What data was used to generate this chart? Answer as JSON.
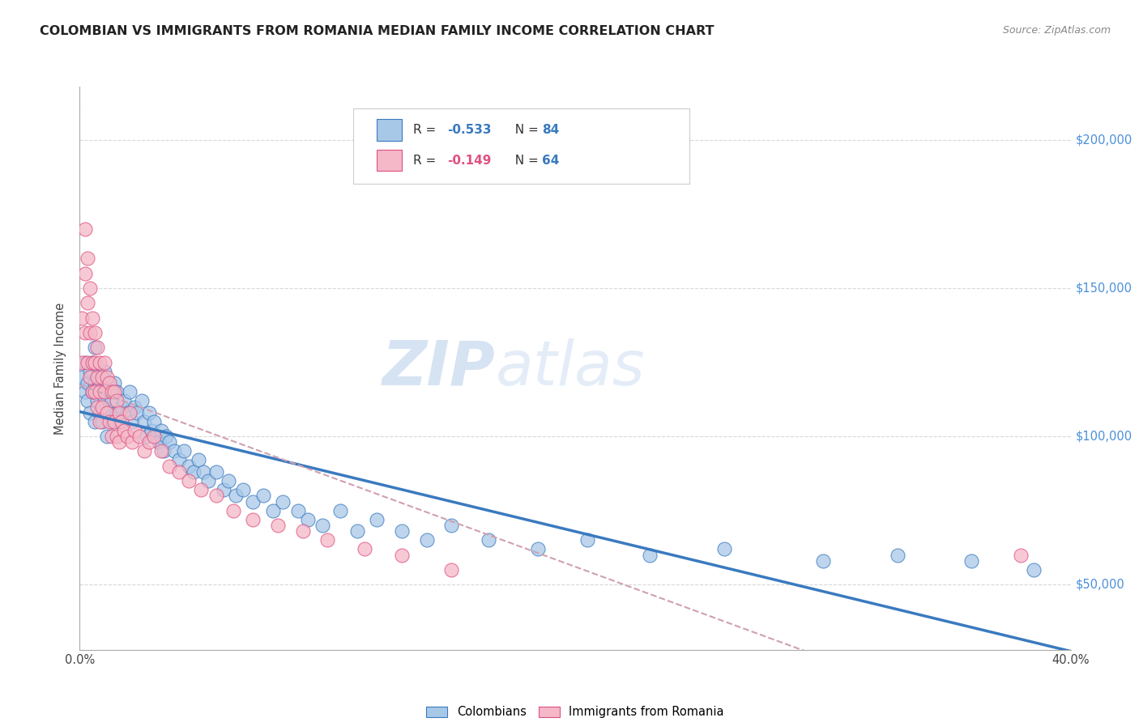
{
  "title": "COLOMBIAN VS IMMIGRANTS FROM ROMANIA MEDIAN FAMILY INCOME CORRELATION CHART",
  "source": "Source: ZipAtlas.com",
  "ylabel": "Median Family Income",
  "y_ticks": [
    50000,
    100000,
    150000,
    200000
  ],
  "y_tick_labels": [
    "$50,000",
    "$100,000",
    "$150,000",
    "$200,000"
  ],
  "xlim": [
    0.0,
    0.4
  ],
  "ylim": [
    28000,
    218000
  ],
  "color_blue": "#a8c8e8",
  "color_pink": "#f4b8c8",
  "line_blue": "#3a7abf",
  "line_pink": "#e05080",
  "line_dashed_color": "#d0a0b0",
  "watermark_zip": "ZIP",
  "watermark_atlas": "atlas",
  "colombians_x": [
    0.001,
    0.002,
    0.002,
    0.003,
    0.003,
    0.004,
    0.004,
    0.005,
    0.005,
    0.006,
    0.006,
    0.006,
    0.007,
    0.007,
    0.008,
    0.008,
    0.009,
    0.009,
    0.01,
    0.01,
    0.011,
    0.011,
    0.012,
    0.012,
    0.013,
    0.013,
    0.014,
    0.015,
    0.015,
    0.016,
    0.017,
    0.018,
    0.019,
    0.02,
    0.021,
    0.022,
    0.023,
    0.025,
    0.026,
    0.027,
    0.028,
    0.029,
    0.03,
    0.031,
    0.032,
    0.033,
    0.034,
    0.035,
    0.036,
    0.038,
    0.04,
    0.042,
    0.044,
    0.046,
    0.048,
    0.05,
    0.052,
    0.055,
    0.058,
    0.06,
    0.063,
    0.066,
    0.07,
    0.074,
    0.078,
    0.082,
    0.088,
    0.092,
    0.098,
    0.105,
    0.112,
    0.12,
    0.13,
    0.14,
    0.15,
    0.165,
    0.185,
    0.205,
    0.23,
    0.26,
    0.3,
    0.33,
    0.36,
    0.385
  ],
  "colombians_y": [
    120000,
    115000,
    125000,
    118000,
    112000,
    122000,
    108000,
    115000,
    125000,
    118000,
    105000,
    130000,
    112000,
    120000,
    108000,
    118000,
    115000,
    105000,
    112000,
    122000,
    100000,
    118000,
    108000,
    115000,
    112000,
    105000,
    118000,
    108000,
    115000,
    105000,
    110000,
    112000,
    108000,
    115000,
    105000,
    110000,
    108000,
    112000,
    105000,
    100000,
    108000,
    102000,
    105000,
    100000,
    98000,
    102000,
    95000,
    100000,
    98000,
    95000,
    92000,
    95000,
    90000,
    88000,
    92000,
    88000,
    85000,
    88000,
    82000,
    85000,
    80000,
    82000,
    78000,
    80000,
    75000,
    78000,
    75000,
    72000,
    70000,
    75000,
    68000,
    72000,
    68000,
    65000,
    70000,
    65000,
    62000,
    65000,
    60000,
    62000,
    58000,
    60000,
    58000,
    55000
  ],
  "romania_x": [
    0.001,
    0.001,
    0.002,
    0.002,
    0.002,
    0.003,
    0.003,
    0.003,
    0.004,
    0.004,
    0.004,
    0.005,
    0.005,
    0.005,
    0.006,
    0.006,
    0.006,
    0.007,
    0.007,
    0.007,
    0.008,
    0.008,
    0.008,
    0.009,
    0.009,
    0.01,
    0.01,
    0.011,
    0.011,
    0.012,
    0.012,
    0.013,
    0.013,
    0.014,
    0.014,
    0.015,
    0.015,
    0.016,
    0.016,
    0.017,
    0.018,
    0.019,
    0.02,
    0.021,
    0.022,
    0.024,
    0.026,
    0.028,
    0.03,
    0.033,
    0.036,
    0.04,
    0.044,
    0.049,
    0.055,
    0.062,
    0.07,
    0.08,
    0.09,
    0.1,
    0.115,
    0.13,
    0.15,
    0.38
  ],
  "romania_y": [
    125000,
    140000,
    155000,
    170000,
    135000,
    145000,
    160000,
    125000,
    150000,
    135000,
    120000,
    140000,
    125000,
    115000,
    135000,
    125000,
    115000,
    130000,
    120000,
    110000,
    125000,
    115000,
    105000,
    120000,
    110000,
    125000,
    115000,
    120000,
    108000,
    118000,
    105000,
    115000,
    100000,
    115000,
    105000,
    112000,
    100000,
    108000,
    98000,
    105000,
    102000,
    100000,
    108000,
    98000,
    102000,
    100000,
    95000,
    98000,
    100000,
    95000,
    90000,
    88000,
    85000,
    82000,
    80000,
    75000,
    72000,
    70000,
    68000,
    65000,
    62000,
    60000,
    55000,
    60000
  ]
}
